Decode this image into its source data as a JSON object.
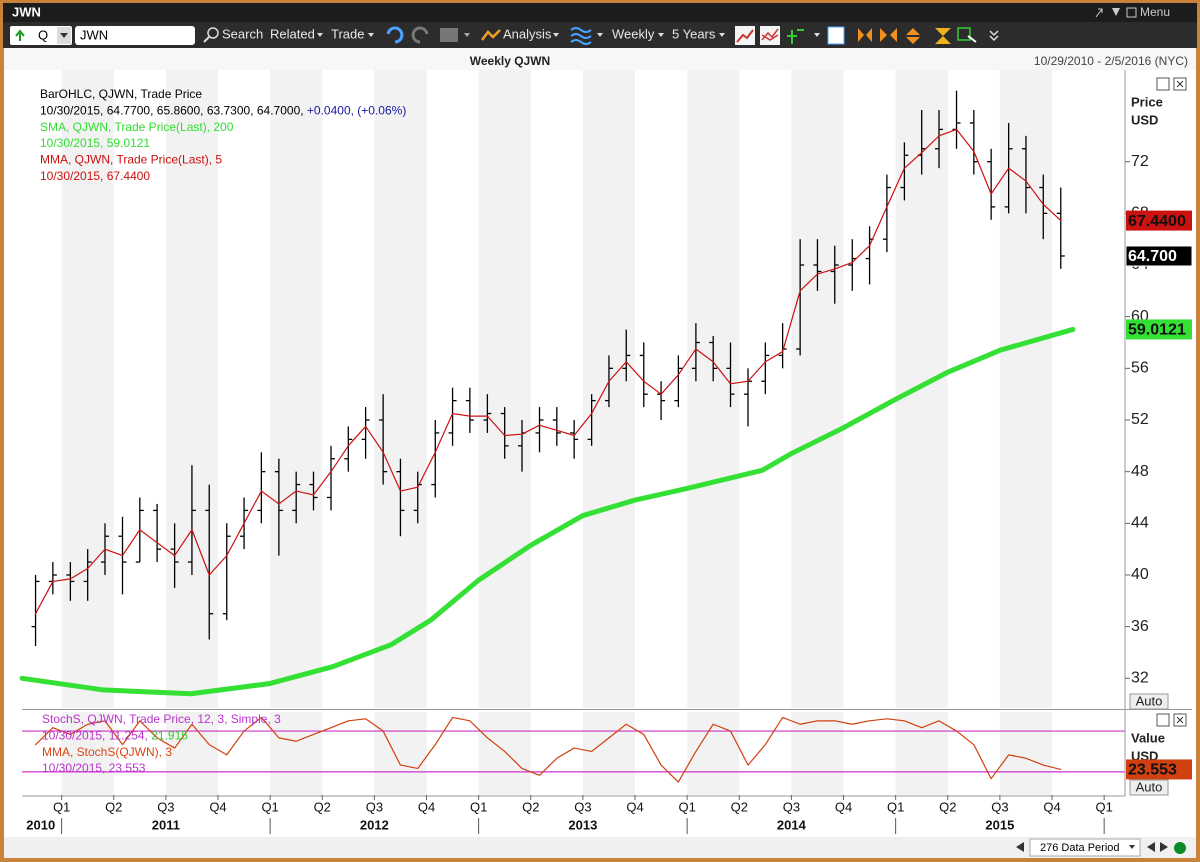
{
  "window": {
    "title": "JWN",
    "menu": "Menu"
  },
  "toolbar": {
    "security": "Q",
    "ticker": "JWN",
    "search": "Search",
    "related": "Related",
    "trade": "Trade",
    "analysis": "Analysis",
    "frequency": "Weekly",
    "range": "5 Years"
  },
  "chart_data": [
    {
      "type": "ohlc",
      "title": "Weekly QJWN",
      "subtitle": "10/29/2010 - 2/5/2016 (NYC)",
      "y_axis_label": "Price",
      "y_axis_unit": "USD",
      "auto_button": "Auto",
      "legend": [
        [
          {
            "text": "BarOHLC, QJWN, Trade Price",
            "color": "#000000"
          }
        ],
        [
          {
            "text": "10/30/2015, 64.7700, 65.8600, 63.7300, 64.7000, ",
            "color": "#000000"
          },
          {
            "text": "+0.0400, (+0.06%)",
            "color": "#1a1aa0"
          }
        ],
        [
          {
            "text": "SMA, QJWN, Trade Price(Last),  200",
            "color": "#33dd33"
          }
        ],
        [
          {
            "text": "10/30/2015, 59.0121",
            "color": "#33dd33"
          }
        ],
        [
          {
            "text": "MMA, QJWN, Trade Price(Last),  5",
            "color": "#cc1111"
          }
        ],
        [
          {
            "text": "10/30/2015, 67.4400",
            "color": "#cc1111"
          }
        ]
      ],
      "x": [
        2010.875,
        2010.958,
        2011.042,
        2011.125,
        2011.208,
        2011.292,
        2011.375,
        2011.458,
        2011.542,
        2011.625,
        2011.708,
        2011.792,
        2011.875,
        2011.958,
        2012.042,
        2012.125,
        2012.208,
        2012.292,
        2012.375,
        2012.458,
        2012.542,
        2012.625,
        2012.708,
        2012.792,
        2012.875,
        2012.958,
        2013.042,
        2013.125,
        2013.208,
        2013.292,
        2013.375,
        2013.458,
        2013.542,
        2013.625,
        2013.708,
        2013.792,
        2013.875,
        2013.958,
        2014.042,
        2014.125,
        2014.208,
        2014.292,
        2014.375,
        2014.458,
        2014.542,
        2014.625,
        2014.708,
        2014.792,
        2014.875,
        2014.958,
        2015.042,
        2015.125,
        2015.208,
        2015.292,
        2015.375,
        2015.458,
        2015.542,
        2015.625,
        2015.708,
        2015.792
      ],
      "open": [
        36,
        39.5,
        40,
        39.5,
        41,
        43,
        41,
        45,
        42,
        41,
        45,
        37,
        43,
        45,
        48,
        45,
        47,
        46,
        49,
        50.5,
        52,
        48,
        45,
        47,
        51,
        53.5,
        52,
        52.5,
        50,
        51,
        52,
        51,
        50.5,
        53.5,
        56,
        57,
        54,
        53.5,
        56,
        58,
        56,
        54,
        55,
        57,
        57.5,
        64,
        63.5,
        64,
        64.5,
        66,
        70,
        72.5,
        73,
        74.5,
        75,
        72,
        68.5,
        73,
        70,
        68
      ],
      "high": [
        40,
        41,
        41,
        42,
        44,
        44.5,
        46,
        45.5,
        44,
        48.5,
        47,
        44,
        46,
        49.5,
        49,
        48,
        48,
        50,
        51.5,
        53,
        54,
        49,
        48,
        52,
        54.5,
        54.5,
        54,
        53,
        52,
        53,
        53,
        52,
        54,
        57,
        59,
        58,
        55,
        57,
        59.5,
        58.5,
        58,
        56,
        58,
        59.5,
        66,
        66,
        65.5,
        66,
        67,
        71,
        73.5,
        76,
        76,
        77.5,
        76,
        73,
        75,
        74,
        71,
        70
      ],
      "low": [
        34.5,
        38.5,
        38,
        38,
        40,
        38.5,
        41,
        41,
        39,
        40,
        35,
        36.5,
        42,
        44,
        41.5,
        44,
        45,
        45,
        48,
        49,
        47,
        43,
        44,
        46,
        50,
        51,
        51,
        49,
        48,
        49.5,
        50,
        49,
        50,
        53,
        55,
        53,
        52,
        53,
        55,
        55,
        53,
        51.5,
        54,
        56,
        57,
        62,
        61,
        62,
        62.5,
        65,
        69,
        71,
        71.5,
        73,
        71,
        67.5,
        68,
        68,
        66,
        63.7
      ],
      "close": [
        39.5,
        40,
        39.5,
        41,
        43,
        41,
        45,
        42,
        41,
        45,
        37,
        43,
        45,
        48,
        45,
        47,
        46,
        49,
        50.5,
        52,
        48,
        45,
        47,
        51,
        53.5,
        52,
        52.5,
        50,
        51,
        52,
        51,
        50.5,
        53.5,
        56,
        57,
        54,
        53.5,
        56,
        58,
        56,
        54,
        55,
        57,
        57.5,
        64,
        63.5,
        64,
        64.5,
        66,
        70,
        72.5,
        73,
        74.5,
        75,
        72,
        68.5,
        73,
        70,
        68,
        64.7
      ],
      "color": "#000000",
      "flag": {
        "value": 64.7,
        "label": "64.700"
      },
      "overlays": [
        {
          "color": "#33e033",
          "width": 5,
          "x": [
            2010.81,
            2011.2,
            2011.62,
            2011.81,
            2012.0,
            2012.3,
            2012.58,
            2012.77,
            2013.0,
            2013.25,
            2013.5,
            2013.75,
            2014.0,
            2014.36,
            2014.5,
            2014.75,
            2015.0,
            2015.25,
            2015.5,
            2015.85
          ],
          "values": [
            32.0,
            31.1,
            30.8,
            31.2,
            31.6,
            32.9,
            34.6,
            36.5,
            39.6,
            42.3,
            44.6,
            45.8,
            46.7,
            48.1,
            49.4,
            51.4,
            53.6,
            55.7,
            57.4,
            59.0121
          ],
          "flag": {
            "value": 59.0121,
            "label": "59.0121"
          }
        },
        {
          "color": "#cc1111",
          "width": 1.2,
          "values": [
            37,
            39.5,
            39.7,
            40.5,
            42,
            41.5,
            43.5,
            42.5,
            41.5,
            43.5,
            40,
            41.5,
            44,
            46.5,
            45.5,
            46.5,
            46.2,
            48,
            50,
            51.5,
            49.5,
            46.5,
            46.8,
            49.5,
            52.5,
            52.3,
            52.3,
            50.8,
            50.9,
            51.6,
            51.2,
            50.8,
            52.5,
            55,
            56.5,
            55,
            54,
            55.5,
            57.5,
            56.5,
            54.8,
            55,
            56.5,
            57.3,
            62,
            63.3,
            63.7,
            64.2,
            65.5,
            68.5,
            71.5,
            72.7,
            74,
            74.5,
            72.8,
            69.5,
            71.5,
            70.5,
            68.7,
            67.44
          ],
          "flag": {
            "value": 67.44,
            "label": "67.4400"
          }
        }
      ],
      "xlim": [
        2010.81,
        2016.1
      ],
      "xticks": [
        {
          "value": 2011,
          "label": "Q1"
        },
        {
          "value": 2011.25,
          "label": "Q2"
        },
        {
          "value": 2011.5,
          "label": "Q3"
        },
        {
          "value": 2011.75,
          "label": "Q4"
        },
        {
          "value": 2012,
          "label": "Q1"
        },
        {
          "value": 2012.25,
          "label": "Q2"
        },
        {
          "value": 2012.5,
          "label": "Q3"
        },
        {
          "value": 2012.75,
          "label": "Q4"
        },
        {
          "value": 2013,
          "label": "Q1"
        },
        {
          "value": 2013.25,
          "label": "Q2"
        },
        {
          "value": 2013.5,
          "label": "Q3"
        },
        {
          "value": 2013.75,
          "label": "Q4"
        },
        {
          "value": 2014,
          "label": "Q1"
        },
        {
          "value": 2014.25,
          "label": "Q2"
        },
        {
          "value": 2014.5,
          "label": "Q3"
        },
        {
          "value": 2014.75,
          "label": "Q4"
        },
        {
          "value": 2015,
          "label": "Q1"
        },
        {
          "value": 2015.25,
          "label": "Q2"
        },
        {
          "value": 2015.5,
          "label": "Q3"
        },
        {
          "value": 2015.75,
          "label": "Q4"
        },
        {
          "value": 2016,
          "label": "Q1"
        }
      ],
      "year_labels": [
        {
          "value": 2010.9,
          "label": "2010"
        },
        {
          "value": 2011.5,
          "label": "2011"
        },
        {
          "value": 2012.5,
          "label": "2012"
        },
        {
          "value": 2013.5,
          "label": "2013"
        },
        {
          "value": 2014.5,
          "label": "2014"
        },
        {
          "value": 2015.5,
          "label": "2015"
        }
      ],
      "ylim": [
        29.7,
        79.1
      ],
      "yticks": [
        32,
        36,
        40,
        44,
        48,
        52,
        56,
        60,
        64,
        68,
        72
      ],
      "shade_alternate_quarters": true
    },
    {
      "type": "line",
      "y_axis_label": "Value",
      "y_axis_unit": "USD",
      "auto_button": "Auto",
      "legend": [
        [
          {
            "text": "StochS, QJWN, Trade Price,  12, 3, Simple, 3",
            "color": "#bb33cc"
          }
        ],
        [
          {
            "text": "10/30/2015, 11.254, ",
            "color": "#bb33cc"
          },
          {
            "text": "21.915",
            "color": "#33cc33"
          }
        ],
        [
          {
            "text": "MMA, StochS(QJWN), 3",
            "color": "#dd4411"
          }
        ],
        [
          {
            "text": "10/30/2015, 23.553",
            "color": "#bb33cc"
          }
        ]
      ],
      "x": [
        2010.875,
        2010.958,
        2011.042,
        2011.125,
        2011.208,
        2011.292,
        2011.375,
        2011.458,
        2011.542,
        2011.625,
        2011.708,
        2011.792,
        2011.875,
        2011.958,
        2012.042,
        2012.125,
        2012.208,
        2012.292,
        2012.375,
        2012.458,
        2012.542,
        2012.625,
        2012.708,
        2012.792,
        2012.875,
        2012.958,
        2013.042,
        2013.125,
        2013.208,
        2013.292,
        2013.375,
        2013.458,
        2013.542,
        2013.625,
        2013.708,
        2013.792,
        2013.875,
        2013.958,
        2014.042,
        2014.125,
        2014.208,
        2014.292,
        2014.375,
        2014.458,
        2014.542,
        2014.625,
        2014.708,
        2014.792,
        2014.875,
        2014.958,
        2015.042,
        2015.125,
        2015.208,
        2015.292,
        2015.375,
        2015.458,
        2015.542,
        2015.625,
        2015.708,
        2015.792
      ],
      "values": [
        60,
        85,
        75,
        90,
        95,
        60,
        95,
        70,
        55,
        90,
        60,
        45,
        80,
        100,
        70,
        65,
        75,
        85,
        95,
        98,
        80,
        30,
        25,
        60,
        100,
        95,
        70,
        50,
        25,
        15,
        40,
        55,
        50,
        70,
        90,
        75,
        30,
        5,
        50,
        90,
        80,
        30,
        60,
        100,
        90,
        95,
        95,
        90,
        95,
        98,
        95,
        85,
        95,
        80,
        60,
        10,
        45,
        40,
        30,
        23.553
      ],
      "color": "#d04010",
      "flag": {
        "value": 23.553,
        "label": "23.553"
      },
      "ylim": [
        -14,
        108
      ],
      "hlines": [
        20,
        80
      ],
      "hline_color": "#cc33cc"
    }
  ],
  "footer": {
    "data_period": "276 Data Period"
  }
}
